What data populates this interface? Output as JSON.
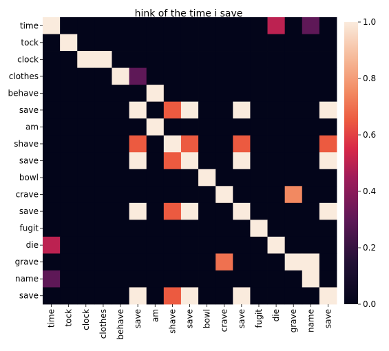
{
  "chart_data": {
    "type": "heatmap",
    "title": "hink of the time i save",
    "xlabel": "",
    "ylabel": "",
    "x_labels": [
      "time",
      "tock",
      "clock",
      "clothes",
      "behave",
      "save",
      "am",
      "shave",
      "save",
      "bowl",
      "crave",
      "save",
      "fugit",
      "die",
      "grave",
      "name",
      "save"
    ],
    "y_labels": [
      "time",
      "tock",
      "clock",
      "clothes",
      "behave",
      "save",
      "am",
      "shave",
      "save",
      "bowl",
      "crave",
      "save",
      "fugit",
      "die",
      "grave",
      "name",
      "save"
    ],
    "values": [
      [
        1,
        0,
        0,
        0,
        0,
        0,
        0,
        0,
        0,
        0,
        0,
        0,
        0,
        0.5,
        0,
        0.3,
        0
      ],
      [
        0,
        1,
        0,
        0,
        0,
        0,
        0,
        0,
        0,
        0,
        0,
        0,
        0,
        0,
        0,
        0,
        0
      ],
      [
        0,
        0,
        1,
        1,
        0,
        0,
        0,
        0,
        0,
        0,
        0,
        0,
        0,
        0,
        0,
        0,
        0
      ],
      [
        0,
        0,
        0,
        0,
        1,
        0.3,
        0,
        0,
        0,
        0,
        0,
        0,
        0,
        0,
        0,
        0,
        0
      ],
      [
        0,
        0,
        0,
        0,
        0,
        0,
        1,
        0,
        0,
        0,
        0,
        0,
        0,
        0,
        0,
        0,
        0
      ],
      [
        0,
        0,
        0,
        0,
        0,
        1,
        0,
        0.65,
        1,
        0,
        0,
        1,
        0,
        0,
        0,
        0,
        1
      ],
      [
        0,
        0,
        0,
        0,
        0,
        0,
        1,
        0,
        0,
        0,
        0,
        0,
        0,
        0,
        0,
        0,
        0
      ],
      [
        0,
        0,
        0,
        0,
        0,
        0.65,
        0,
        1,
        0.65,
        0,
        0,
        0.65,
        0,
        0,
        0,
        0,
        0.65
      ],
      [
        0,
        0,
        0,
        0,
        0,
        1,
        0,
        0.65,
        1,
        0,
        0,
        1,
        0,
        0,
        0,
        0,
        1
      ],
      [
        0,
        0,
        0,
        0,
        0,
        0,
        0,
        0,
        0,
        1,
        0,
        0,
        0,
        0,
        0,
        0,
        0
      ],
      [
        0,
        0,
        0,
        0,
        0,
        0,
        0,
        0,
        0,
        0,
        1,
        0,
        0,
        0,
        0.75,
        0,
        0
      ],
      [
        0,
        0,
        0,
        0,
        0,
        1,
        0,
        0.65,
        1,
        0,
        0,
        1,
        0,
        0,
        0,
        0,
        1
      ],
      [
        0,
        0,
        0,
        0,
        0,
        0,
        0,
        0,
        0,
        0,
        0,
        0,
        1,
        0,
        0,
        0,
        0
      ],
      [
        0.5,
        0,
        0,
        0,
        0,
        0,
        0,
        0,
        0,
        0,
        0,
        0,
        0,
        1,
        0,
        0,
        0
      ],
      [
        0,
        0,
        0,
        0,
        0,
        0,
        0,
        0,
        0,
        0,
        0.7,
        0,
        0,
        0,
        1,
        1,
        0
      ],
      [
        0.3,
        0,
        0,
        0,
        0,
        0,
        0,
        0,
        0,
        0,
        0,
        0,
        0,
        0,
        0,
        1,
        0
      ],
      [
        0,
        0,
        0,
        0,
        0,
        1,
        0,
        0.65,
        1,
        0,
        0,
        1,
        0,
        0,
        0,
        0,
        1
      ]
    ],
    "colorbar": {
      "min": 0.0,
      "max": 1.0,
      "ticks": [
        "0.0",
        "0.2",
        "0.4",
        "0.6",
        "0.8",
        "1.0"
      ]
    },
    "colormap": "rocket",
    "grid": false,
    "legend": "colorbar-right"
  }
}
